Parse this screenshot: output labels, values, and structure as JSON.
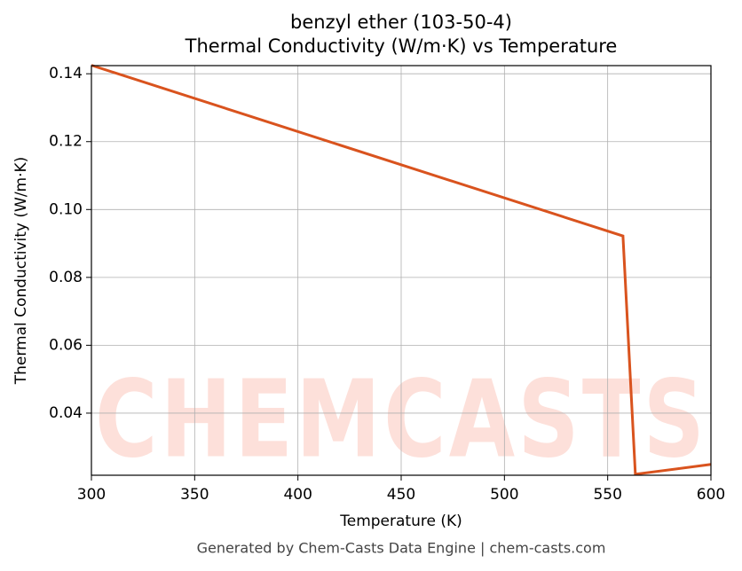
{
  "chart_data": {
    "type": "line",
    "title": "benzyl ether (103-50-4)",
    "subtitle": "Thermal Conductivity (W/m·K) vs Temperature",
    "x_label": "Temperature (K)",
    "y_label": "Thermal Conductivity (W/m·K)",
    "footer": "Generated by Chem-Casts Data Engine | chem-casts.com",
    "watermark": "CHEMCASTS",
    "x": [
      300,
      557.4,
      563.4,
      600
    ],
    "series": [
      {
        "name": "Thermal Conductivity",
        "color": "#d9531e",
        "values": [
          0.1425,
          0.0922,
          0.022,
          0.0249
        ]
      }
    ],
    "xlim": [
      300,
      600
    ],
    "xticks": [
      300,
      350,
      400,
      450,
      500,
      550,
      600
    ],
    "ylim": [
      0.0217,
      0.1424
    ],
    "yticks": [
      0.04,
      0.06,
      0.08,
      {
        "value": 0.1,
        "label": "0.10"
      },
      0.12,
      0.14
    ],
    "grid": true
  }
}
